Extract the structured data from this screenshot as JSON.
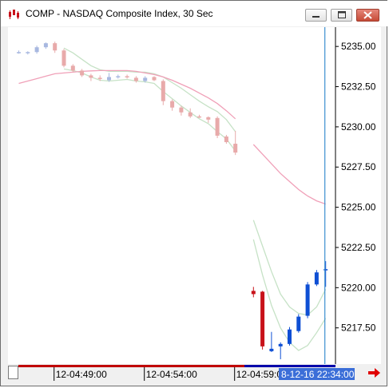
{
  "window": {
    "title": "COMP - NASDAQ Composite Index, 30 Sec",
    "icon": "chart-app-icon",
    "controls": [
      "minimize-icon",
      "maximize-icon",
      "close-icon"
    ]
  },
  "colors": {
    "up_candle": "#0e4fd4",
    "down_candle": "#c8121a",
    "faded_up": "#a8b8e0",
    "faded_down": "#e8aaaa",
    "band": "#c6e2c6",
    "ma": "#f0a0b8",
    "cursor": "#3c8fd0",
    "session_bar": "#c00000",
    "session_bar_2": "#0000aa",
    "cursor_label_bg": "#3b6ed8"
  },
  "chart_data": {
    "type": "candlestick",
    "title": "COMP - NASDAQ Composite Index, 30 Sec",
    "xlabel": "",
    "ylabel": "",
    "ylim": [
      5215.3,
      5236.2
    ],
    "y_ticks": [
      "5235.00",
      "5232.50",
      "5230.00",
      "5227.50",
      "5225.00",
      "5222.50",
      "5220.00",
      "5217.50"
    ],
    "y_tick_values": [
      5235.0,
      5232.5,
      5230.0,
      5227.5,
      5225.0,
      5222.5,
      5220.0,
      5217.5
    ],
    "x_tick_labels": [
      "12-04:49:00",
      "12-04:54:00",
      "12-04:59:00"
    ],
    "x_tick_index": [
      4,
      14,
      24
    ],
    "cursor_label": "8-12-16 22:34:00",
    "cursor_index": 34,
    "candles": [
      {
        "o": 5234.65,
        "h": 5234.75,
        "l": 5234.55,
        "c": 5234.65,
        "faded": true
      },
      {
        "o": 5234.6,
        "h": 5234.7,
        "l": 5234.5,
        "c": 5234.65,
        "faded": true
      },
      {
        "o": 5234.65,
        "h": 5235.05,
        "l": 5234.55,
        "c": 5234.95,
        "faded": true
      },
      {
        "o": 5234.95,
        "h": 5235.25,
        "l": 5234.85,
        "c": 5235.2,
        "faded": true
      },
      {
        "o": 5235.2,
        "h": 5235.3,
        "l": 5234.6,
        "c": 5234.75,
        "faded": true
      },
      {
        "o": 5234.75,
        "h": 5234.85,
        "l": 5233.7,
        "c": 5233.8,
        "faded": true
      },
      {
        "o": 5233.8,
        "h": 5233.9,
        "l": 5233.4,
        "c": 5233.5,
        "faded": true
      },
      {
        "o": 5233.5,
        "h": 5233.6,
        "l": 5233.1,
        "c": 5233.2,
        "faded": true
      },
      {
        "o": 5233.2,
        "h": 5233.3,
        "l": 5232.85,
        "c": 5233.05,
        "faded": true
      },
      {
        "o": 5233.05,
        "h": 5233.2,
        "l": 5232.85,
        "c": 5233.0,
        "faded": true
      },
      {
        "o": 5232.9,
        "h": 5233.35,
        "l": 5232.8,
        "c": 5233.1,
        "faded": true
      },
      {
        "o": 5233.1,
        "h": 5233.25,
        "l": 5233.0,
        "c": 5233.15,
        "faded": true
      },
      {
        "o": 5233.15,
        "h": 5233.25,
        "l": 5233.0,
        "c": 5233.1,
        "faded": true
      },
      {
        "o": 5233.05,
        "h": 5233.15,
        "l": 5232.75,
        "c": 5232.85,
        "faded": true
      },
      {
        "o": 5232.85,
        "h": 5233.15,
        "l": 5232.75,
        "c": 5233.05,
        "faded": true
      },
      {
        "o": 5233.1,
        "h": 5233.15,
        "l": 5232.85,
        "c": 5232.9,
        "faded": true
      },
      {
        "o": 5232.85,
        "h": 5232.95,
        "l": 5231.35,
        "c": 5231.6,
        "faded": true
      },
      {
        "o": 5231.6,
        "h": 5231.7,
        "l": 5231.0,
        "c": 5231.2,
        "faded": true
      },
      {
        "o": 5231.2,
        "h": 5231.3,
        "l": 5230.7,
        "c": 5230.9,
        "faded": true
      },
      {
        "o": 5230.9,
        "h": 5231.15,
        "l": 5230.55,
        "c": 5230.65,
        "faded": true
      },
      {
        "o": 5230.65,
        "h": 5230.75,
        "l": 5230.55,
        "c": 5230.6,
        "faded": true
      },
      {
        "o": 5230.6,
        "h": 5230.65,
        "l": 5230.25,
        "c": 5230.45,
        "faded": true
      },
      {
        "o": 5230.55,
        "h": 5230.65,
        "l": 5229.3,
        "c": 5229.45,
        "faded": true
      },
      {
        "o": 5229.4,
        "h": 5229.5,
        "l": 5228.95,
        "c": 5229.05,
        "faded": true
      },
      {
        "o": 5228.95,
        "h": 5229.75,
        "l": 5228.25,
        "c": 5228.4,
        "faded": true
      },
      {
        "o": null
      },
      {
        "o": 5219.8,
        "h": 5220.05,
        "l": 5219.4,
        "c": 5219.6,
        "faded": false
      },
      {
        "o": 5219.75,
        "h": 5219.8,
        "l": 5216.15,
        "c": 5216.35,
        "faded": false
      },
      {
        "o": 5216.05,
        "h": 5217.25,
        "l": 5216.0,
        "c": 5216.2,
        "faded": false
      },
      {
        "o": 5216.35,
        "h": 5216.6,
        "l": 5215.55,
        "c": 5216.5,
        "faded": false
      },
      {
        "o": 5216.5,
        "h": 5217.55,
        "l": 5216.4,
        "c": 5217.4,
        "faded": false
      },
      {
        "o": 5217.3,
        "h": 5218.35,
        "l": 5217.2,
        "c": 5218.2,
        "faded": false
      },
      {
        "o": 5218.25,
        "h": 5220.35,
        "l": 5218.1,
        "c": 5220.2,
        "faded": false
      },
      {
        "o": 5220.2,
        "h": 5221.1,
        "l": 5220.1,
        "c": 5220.95,
        "faded": false
      },
      {
        "o": 5221.1,
        "h": 5221.65,
        "l": 5220.05,
        "c": 5221.15,
        "faded": false
      }
    ],
    "band_upper": [
      null,
      null,
      null,
      null,
      null,
      5234.9,
      5234.6,
      5234.2,
      5233.8,
      5233.55,
      5233.45,
      5233.45,
      5233.45,
      5233.4,
      5233.4,
      5233.3,
      5233.1,
      5232.75,
      5232.4,
      5232.0,
      5231.6,
      5231.25,
      5230.95,
      5230.45,
      5229.7,
      null,
      5224.2,
      5222.6,
      5221.0,
      5219.6,
      5218.8,
      5218.4,
      5218.3,
      5218.8,
      5219.9
    ],
    "band_lower": [
      null,
      null,
      null,
      null,
      null,
      5233.6,
      5233.5,
      5233.35,
      5233.1,
      5232.9,
      5232.85,
      5232.9,
      5232.95,
      5232.85,
      5232.8,
      5232.7,
      5232.2,
      5231.75,
      5231.3,
      5230.9,
      5230.5,
      5230.2,
      5229.7,
      5229.25,
      5228.5,
      null,
      5223.0,
      5220.8,
      5218.9,
      5217.5,
      5216.6,
      5216.1,
      5216.4,
      5217.2,
      5218.1
    ],
    "ma": [
      5232.7,
      5232.85,
      5233.0,
      5233.15,
      5233.3,
      5233.35,
      5233.4,
      5233.45,
      5233.48,
      5233.5,
      5233.5,
      5233.5,
      5233.5,
      5233.45,
      5233.35,
      5233.25,
      5233.1,
      5232.9,
      5232.65,
      5232.4,
      5232.1,
      5231.8,
      5231.45,
      5231.0,
      5230.5,
      null,
      5228.9,
      5228.3,
      5227.7,
      5227.1,
      5226.6,
      5226.1,
      5225.7,
      5225.4,
      5225.2
    ]
  }
}
